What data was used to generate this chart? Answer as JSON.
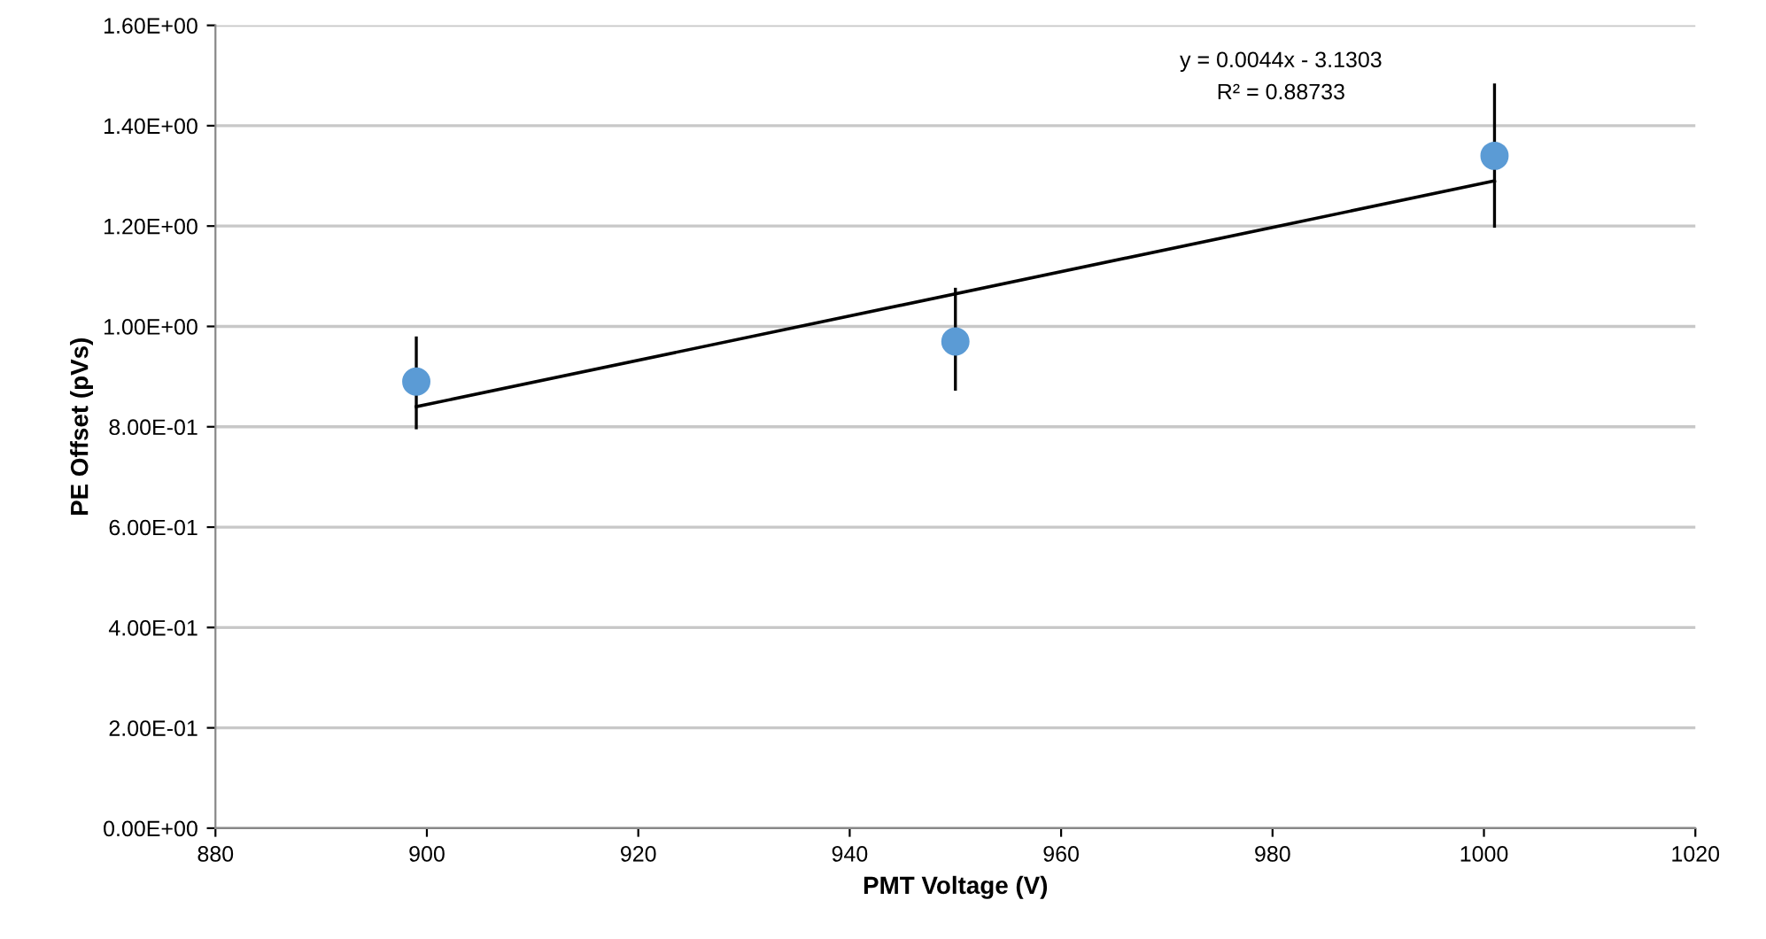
{
  "chart_data": {
    "type": "scatter",
    "xlabel": "PMT Voltage (V)",
    "ylabel": "PE Offset (pVs)",
    "series": [
      {
        "color": "#5b9bd5",
        "x": [
          899,
          950,
          1001
        ],
        "values": [
          0.89,
          0.97,
          1.34
        ],
        "errors": [
          [
            0.795,
            0.98
          ],
          [
            0.872,
            1.077
          ],
          [
            1.197,
            1.484
          ]
        ],
        "marker": "circle"
      },
      {
        "type": "line",
        "color": "#000000",
        "x": [
          899,
          1001
        ],
        "values": [
          0.84,
          1.29
        ],
        "marker": "none",
        "line_style": "solid"
      }
    ],
    "annotations": [
      "y = 0.0044x - 3.1303",
      "R² = 0.88733"
    ],
    "xlim": [
      880,
      1020
    ],
    "xticks": [
      880,
      900,
      920,
      940,
      960,
      980,
      1000,
      1020
    ],
    "ylim": [
      0,
      1.6
    ],
    "yticks": [
      {
        "value": 0,
        "label": "0.00E+00"
      },
      {
        "value": 0.2,
        "label": "2.00E-01"
      },
      {
        "value": 0.4,
        "label": "4.00E-01"
      },
      {
        "value": 0.6,
        "label": "6.00E-01"
      },
      {
        "value": 0.8,
        "label": "8.00E-01"
      },
      {
        "value": 1.0,
        "label": "1.00E+00"
      },
      {
        "value": 1.2,
        "label": "1.20E+00"
      },
      {
        "value": 1.4,
        "label": "1.40E+00"
      },
      {
        "value": 1.6,
        "label": "1.60E+00"
      }
    ],
    "grid": "y"
  }
}
